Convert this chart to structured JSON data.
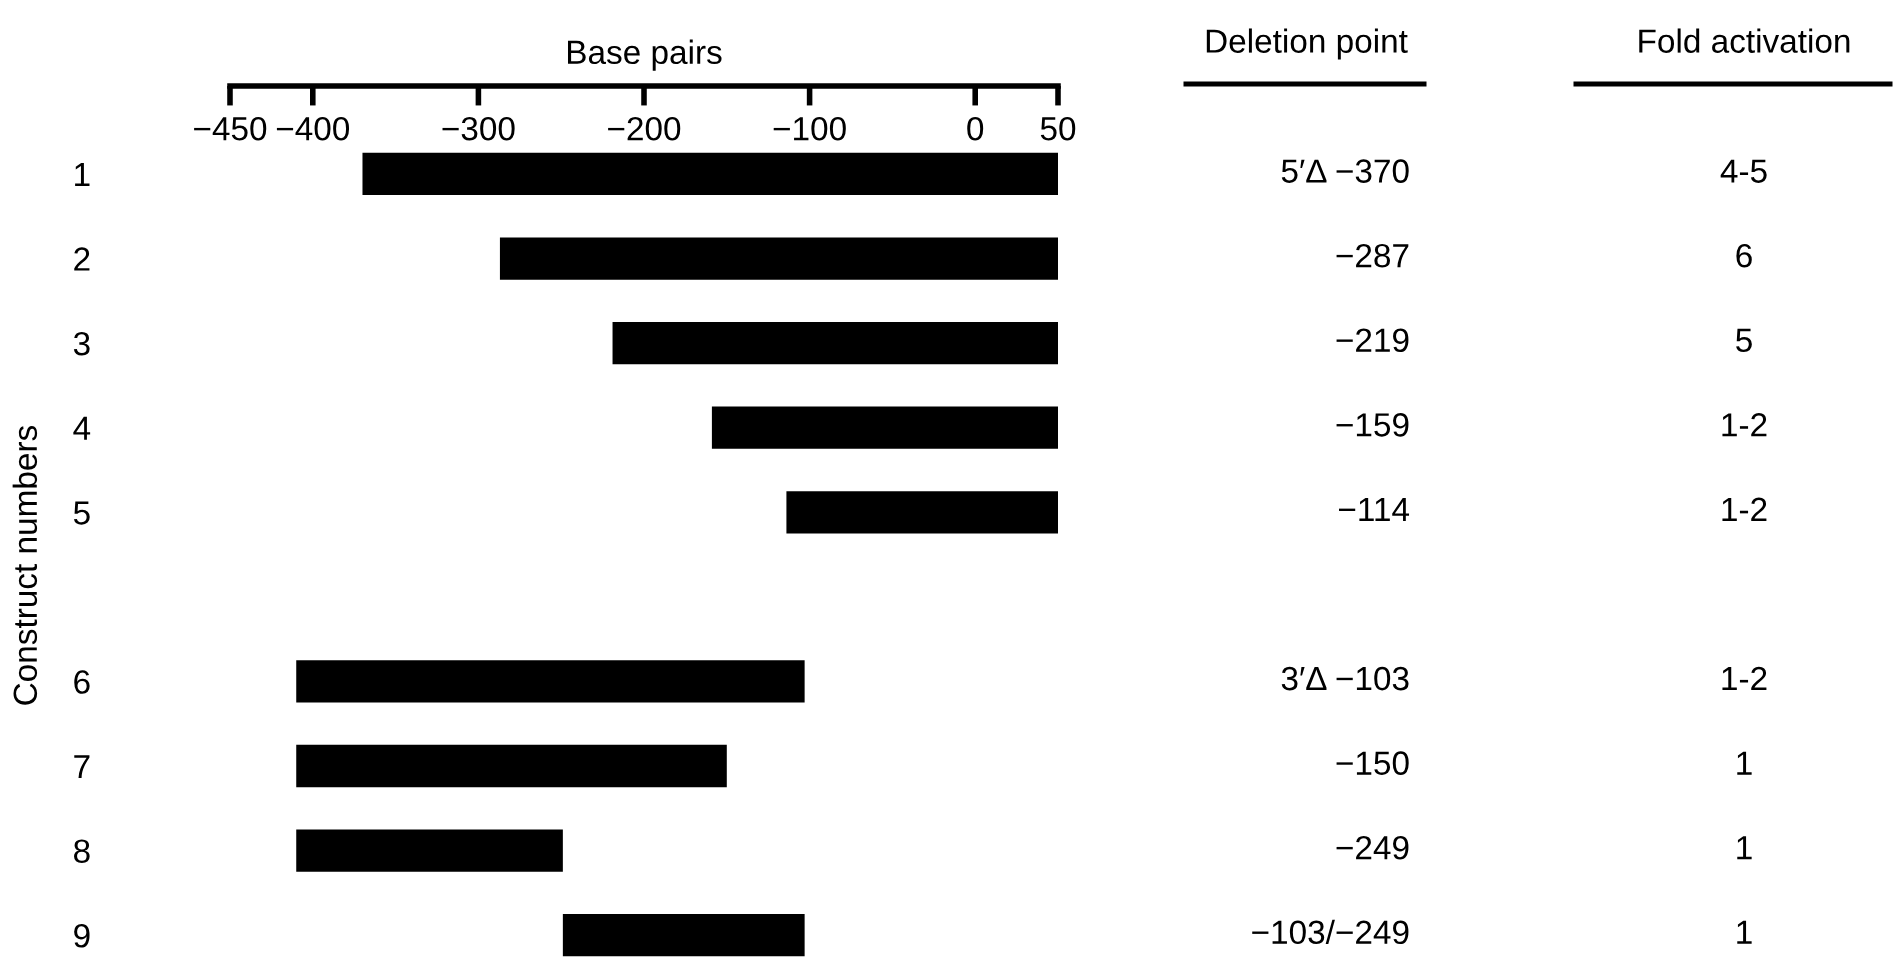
{
  "chart_data": {
    "type": "bar",
    "orientation": "horizontal",
    "xlabel": "Base pairs",
    "ylabel": "Construct numbers",
    "categories": [
      "1",
      "2",
      "3",
      "4",
      "5",
      null,
      "6",
      "7",
      "8",
      "9"
    ],
    "base": [
      -370,
      -287,
      -219,
      -159,
      -114,
      null,
      -410,
      -410,
      -410,
      -249
    ],
    "values": [
      420,
      337,
      269,
      209,
      164,
      null,
      307,
      260,
      161,
      146
    ],
    "color": "#000000",
    "xlim": [
      -450,
      50
    ],
    "xticks": [
      {
        "value": -450,
        "label": "−450"
      },
      {
        "value": -400,
        "label": "−400"
      },
      {
        "value": -300,
        "label": "−300"
      },
      {
        "value": -200,
        "label": "−200"
      },
      {
        "value": -100,
        "label": "−100"
      },
      0,
      50
    ],
    "grid": false,
    "legend": false,
    "annotations": [
      "Deletion point",
      "Fold activation",
      "5′Δ −370",
      "4-5",
      "−287",
      "6",
      "−219",
      "5",
      "−159",
      "1-2",
      "−114",
      "1-2",
      "3′Δ −103",
      "1-2",
      "−150",
      "1",
      "−249",
      "1",
      "−103/−249",
      "1"
    ]
  }
}
